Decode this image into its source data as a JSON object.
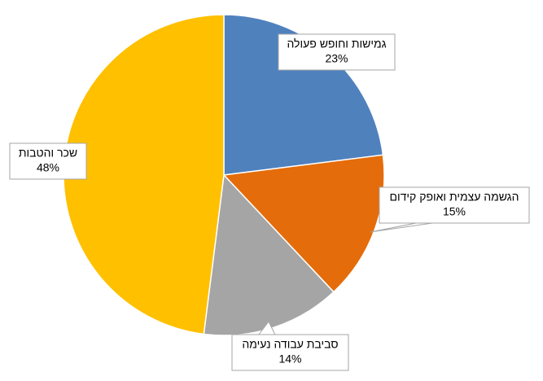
{
  "chart_data": {
    "type": "pie",
    "categories": [
      "גמישות וחופש פעולה",
      "הגשמה עצמית ואופק קידום",
      "סביבת עבודה נעימה",
      "שכר והטבות"
    ],
    "values": [
      23,
      15,
      14,
      48
    ],
    "value_labels": [
      "23%",
      "15%",
      "14%",
      "48%"
    ],
    "colors": [
      "#4f81bd",
      "#e46c0a",
      "#a5a5a5",
      "#ffc000"
    ]
  }
}
